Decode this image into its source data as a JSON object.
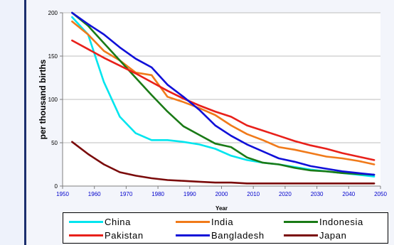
{
  "chart_data": {
    "type": "line",
    "title": "",
    "xlabel": "Year",
    "ylabel": "per thousand births",
    "xlim": [
      1950,
      2050
    ],
    "ylim": [
      0,
      200
    ],
    "x_ticks": [
      "1950",
      "1960",
      "1970",
      "1980",
      "1990",
      "2000",
      "2010",
      "2020",
      "2030",
      "2040",
      "2050"
    ],
    "y_ticks": [
      "0",
      "50",
      "100",
      "150",
      "200"
    ],
    "grid": "horizontal",
    "legend": "bottom",
    "series": [
      {
        "name": "China",
        "color": "#00e5ee",
        "x": [
          1953,
          1958,
          1963,
          1968,
          1973,
          1978,
          1983,
          1988,
          1993,
          1998,
          2003,
          2008,
          2013,
          2018,
          2023,
          2028,
          2033,
          2038,
          2043,
          2048
        ],
        "y": [
          195,
          175,
          120,
          80,
          61,
          53,
          53,
          51,
          48,
          43,
          35,
          30,
          27,
          25,
          22,
          19,
          17,
          15,
          13,
          11
        ]
      },
      {
        "name": "India",
        "color": "#f07a1a",
        "x": [
          1953,
          1958,
          1963,
          1968,
          1973,
          1978,
          1983,
          1988,
          1993,
          1998,
          2003,
          2008,
          2013,
          2018,
          2023,
          2028,
          2033,
          2038,
          2043,
          2048
        ],
        "y": [
          190,
          175,
          156,
          145,
          131,
          128,
          103,
          97,
          90,
          82,
          70,
          60,
          53,
          45,
          42,
          38,
          34,
          32,
          29,
          25
        ]
      },
      {
        "name": "Indonesia",
        "color": "#1a7a16",
        "x": [
          1953,
          1958,
          1963,
          1968,
          1973,
          1978,
          1983,
          1988,
          1993,
          1998,
          2003,
          2008,
          2013,
          2018,
          2023,
          2028,
          2033,
          2038,
          2043,
          2048
        ],
        "y": [
          200,
          185,
          165,
          145,
          125,
          105,
          86,
          69,
          59,
          49,
          45,
          33,
          27,
          25,
          21,
          18,
          17,
          15,
          14,
          13
        ]
      },
      {
        "name": "Pakistan",
        "color": "#e8201a",
        "x": [
          1953,
          1958,
          1963,
          1968,
          1973,
          1978,
          1983,
          1988,
          1993,
          1998,
          2003,
          2008,
          2013,
          2018,
          2023,
          2028,
          2033,
          2038,
          2043,
          2048
        ],
        "y": [
          168,
          158,
          148,
          139,
          130,
          120,
          110,
          101,
          93,
          86,
          80,
          70,
          64,
          58,
          52,
          47,
          43,
          38,
          34,
          30
        ]
      },
      {
        "name": "Bangladesh",
        "color": "#1010d8",
        "x": [
          1953,
          1958,
          1963,
          1968,
          1973,
          1978,
          1983,
          1988,
          1993,
          1998,
          2003,
          2008,
          2013,
          2018,
          2023,
          2028,
          2033,
          2038,
          2043,
          2048
        ],
        "y": [
          200,
          187,
          175,
          160,
          147,
          137,
          117,
          103,
          88,
          70,
          58,
          48,
          40,
          32,
          28,
          23,
          20,
          17,
          15,
          13
        ]
      },
      {
        "name": "Japan",
        "color": "#7a0a0a",
        "x": [
          1953,
          1958,
          1963,
          1968,
          1973,
          1978,
          1983,
          1988,
          1993,
          1998,
          2003,
          2008,
          2013,
          2018,
          2023,
          2028,
          2033,
          2038,
          2043,
          2048
        ],
        "y": [
          51,
          37,
          25,
          16,
          12,
          9,
          7,
          6,
          5,
          4,
          4,
          3,
          3,
          3,
          3,
          3,
          3,
          3,
          3,
          3
        ]
      }
    ]
  },
  "colors": {
    "plot_background": "#ffffff",
    "frame_background": "#f3f5fb",
    "gridline": "#bdbdbd",
    "axis": "#7f7f7f",
    "x_tick_label": "#0000cc",
    "left_rule": "#1c2f6e"
  }
}
